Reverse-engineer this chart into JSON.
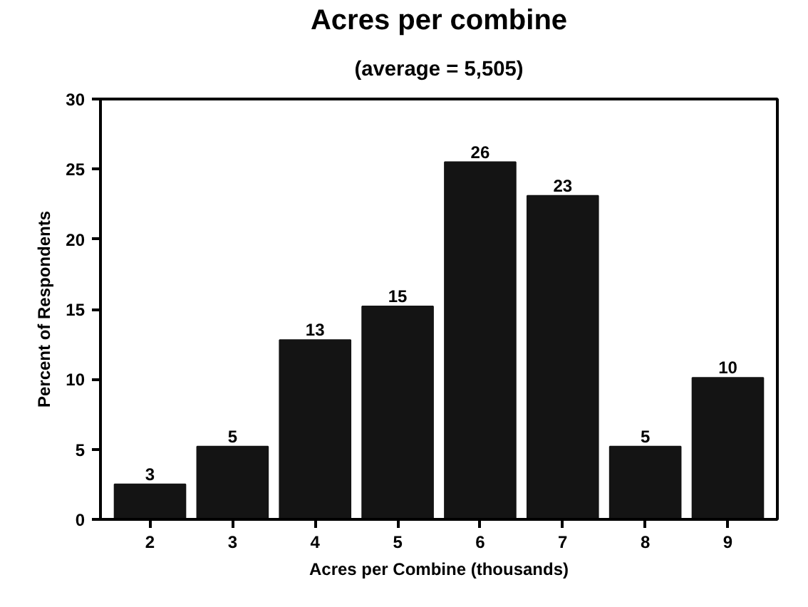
{
  "chart_data": {
    "type": "bar",
    "title": "Acres per combine",
    "subtitle": "(average = 5,505)",
    "xlabel": "Acres per Combine (thousands)",
    "ylabel": "Percent of Respondents",
    "categories": [
      "2",
      "3",
      "4",
      "5",
      "6",
      "7",
      "8",
      "9"
    ],
    "values": [
      2.5,
      5.2,
      12.8,
      15.2,
      25.5,
      23.1,
      5.2,
      10.1
    ],
    "value_labels": [
      "3",
      "5",
      "13",
      "15",
      "26",
      "23",
      "5",
      "10"
    ],
    "color": "#141414",
    "ylim": [
      0,
      30
    ],
    "yticks": [
      0,
      5,
      10,
      15,
      20,
      25,
      30
    ],
    "grid": false
  }
}
